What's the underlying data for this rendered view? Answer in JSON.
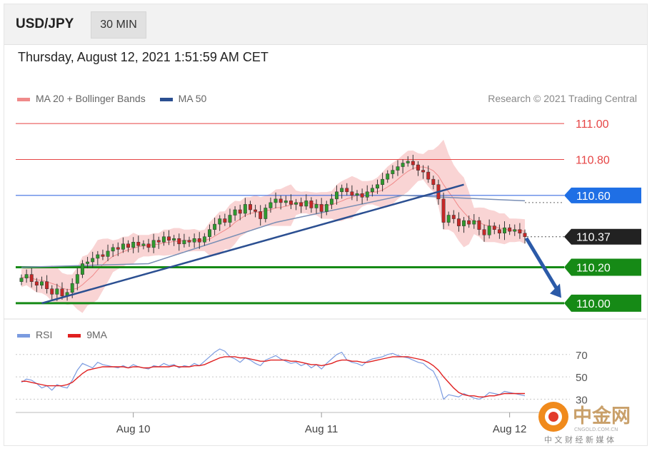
{
  "header": {
    "symbol": "USD/JPY",
    "timeframe": "30 MIN"
  },
  "timestamp": "Thursday, August 12, 2021 1:51:59 AM CET",
  "legend": {
    "items": [
      {
        "label": "MA 20 + Bollinger Bands",
        "color": "#f08a8a"
      },
      {
        "label": "MA 50",
        "color": "#2b4f91"
      }
    ],
    "rsi_items": [
      {
        "label": "RSI",
        "color": "#7b9be0"
      },
      {
        "label": "9MA",
        "color": "#e02020"
      }
    ]
  },
  "credit": "Research © 2021 Trading Central",
  "watermark": {
    "text": "中金网",
    "sub_text": "CNGOLD.COM.CN",
    "tagline": "中 文 财 经 新 媒 体"
  },
  "colors": {
    "resistance": "#e64545",
    "support": "#168a16",
    "ma50": "#2b4f91",
    "bollinger": "#f7c5c5",
    "current": "#222222",
    "rsi": "#7b9be0",
    "rsi_ma": "#e02020"
  },
  "chart_data": [
    {
      "type": "line",
      "subtype": "candlestick",
      "x_labels": [
        "Aug 10",
        "Aug 11",
        "Aug 12"
      ],
      "y_range": [
        109.94,
        111.06
      ],
      "price_levels": [
        {
          "value": 111.0,
          "label": "111.00",
          "kind": "resistance"
        },
        {
          "value": 110.8,
          "label": "110.80",
          "kind": "resistance"
        },
        {
          "value": 110.6,
          "label": "110.60",
          "kind": "pivot"
        },
        {
          "value": 110.37,
          "label": "110.37",
          "kind": "current"
        },
        {
          "value": 110.2,
          "label": "110.20",
          "kind": "support"
        },
        {
          "value": 110.0,
          "label": "110.00",
          "kind": "support"
        }
      ],
      "close_series": [
        110.14,
        110.16,
        110.12,
        110.1,
        110.12,
        110.08,
        110.05,
        110.08,
        110.04,
        110.06,
        110.11,
        110.16,
        110.22,
        110.23,
        110.25,
        110.27,
        110.26,
        110.29,
        110.31,
        110.3,
        110.33,
        110.31,
        110.34,
        110.32,
        110.33,
        110.31,
        110.35,
        110.34,
        110.37,
        110.35,
        110.36,
        110.33,
        110.35,
        110.34,
        110.36,
        110.34,
        110.37,
        110.41,
        110.44,
        110.47,
        110.45,
        110.49,
        110.52,
        110.5,
        110.55,
        110.52,
        110.51,
        110.47,
        110.53,
        110.56,
        110.58,
        110.56,
        110.57,
        110.55,
        110.56,
        110.54,
        110.57,
        110.53,
        110.55,
        110.51,
        110.55,
        110.58,
        110.62,
        110.64,
        110.62,
        110.6,
        110.61,
        110.59,
        110.62,
        110.64,
        110.66,
        110.69,
        110.72,
        110.74,
        110.76,
        110.78,
        110.79,
        110.77,
        110.74,
        110.73,
        110.69,
        110.66,
        110.58,
        110.45,
        110.49,
        110.47,
        110.43,
        110.46,
        110.44,
        110.46,
        110.41,
        110.38,
        110.43,
        110.41,
        110.39,
        110.42,
        110.4,
        110.41,
        110.39,
        110.37
      ],
      "ma50_points": [
        {
          "x": 0,
          "y": 110.2
        },
        {
          "x": 25,
          "y": 110.22
        },
        {
          "x": 50,
          "y": 110.45
        },
        {
          "x": 75,
          "y": 110.6
        },
        {
          "x": 99,
          "y": 110.57
        }
      ],
      "trendline": [
        {
          "x": 4,
          "y": 110.0
        },
        {
          "x": 87,
          "y": 110.66
        }
      ],
      "projection": {
        "from": 110.37,
        "to": 110.03
      }
    },
    {
      "type": "line",
      "name": "RSI",
      "y_ticks": [
        70,
        50,
        30
      ],
      "y_range": [
        20,
        82
      ],
      "series": [
        {
          "name": "RSI",
          "values": [
            45,
            48,
            47,
            44,
            40,
            42,
            38,
            43,
            41,
            40,
            47,
            56,
            62,
            60,
            58,
            63,
            61,
            60,
            59,
            58,
            60,
            58,
            61,
            59,
            58,
            57,
            60,
            59,
            62,
            60,
            61,
            58,
            60,
            59,
            62,
            60,
            64,
            68,
            72,
            75,
            73,
            68,
            66,
            63,
            67,
            65,
            62,
            60,
            65,
            67,
            69,
            66,
            64,
            62,
            63,
            60,
            62,
            58,
            61,
            57,
            62,
            66,
            70,
            72,
            65,
            63,
            62,
            60,
            64,
            66,
            67,
            68,
            70,
            71,
            69,
            68,
            67,
            65,
            63,
            62,
            58,
            55,
            46,
            30,
            34,
            33,
            32,
            35,
            33,
            31,
            30,
            32,
            36,
            35,
            34,
            37,
            36,
            35,
            34,
            33
          ]
        },
        {
          "name": "9MA",
          "values": [
            46,
            46,
            45,
            44,
            43,
            42,
            42,
            42,
            42,
            43,
            45,
            49,
            53,
            56,
            57,
            58,
            59,
            59,
            59,
            59,
            59,
            58,
            59,
            59,
            58,
            58,
            59,
            59,
            59,
            59,
            60,
            59,
            59,
            59,
            60,
            60,
            61,
            63,
            65,
            67,
            68,
            68,
            68,
            67,
            67,
            66,
            65,
            64,
            64,
            65,
            65,
            65,
            65,
            64,
            64,
            63,
            62,
            61,
            61,
            60,
            61,
            62,
            64,
            65,
            65,
            64,
            64,
            63,
            63,
            64,
            65,
            66,
            67,
            68,
            68,
            68,
            68,
            67,
            66,
            65,
            63,
            60,
            56,
            50,
            45,
            40,
            36,
            34,
            33,
            33,
            32,
            32,
            33,
            33,
            34,
            35,
            35,
            35,
            35,
            35
          ]
        }
      ]
    }
  ]
}
